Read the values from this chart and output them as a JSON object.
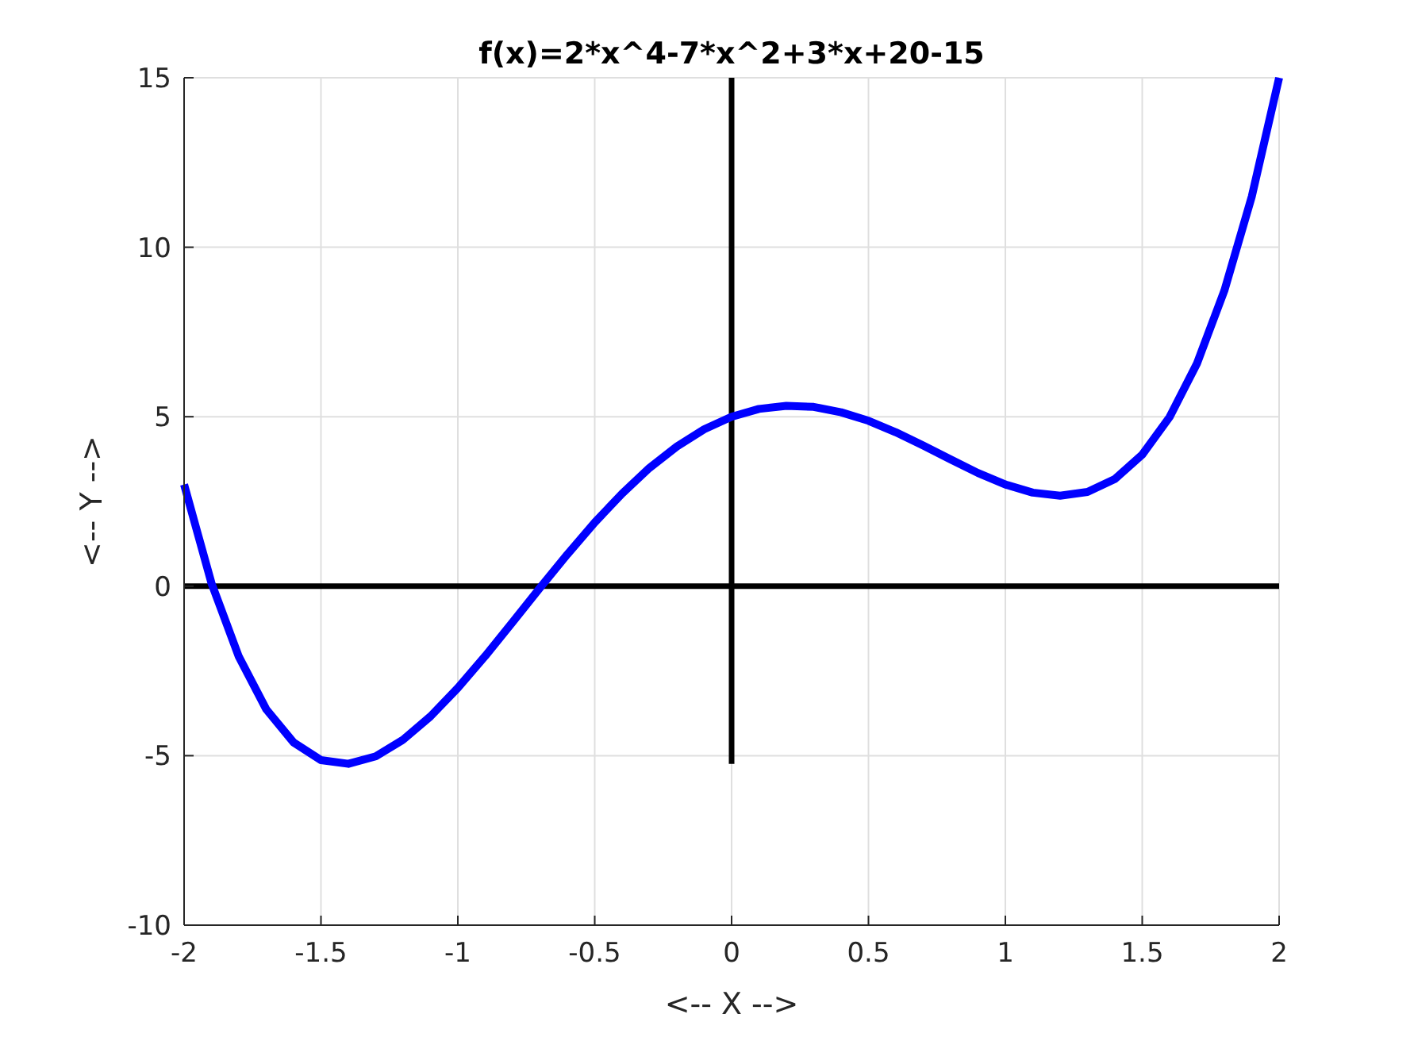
{
  "chart_data": {
    "type": "line",
    "title": "f(x)=2*x^4-7*x^2+3*x+20-15",
    "xlabel": "<-- X -->",
    "ylabel": "<-- Y -->",
    "xlim": [
      -2,
      2
    ],
    "ylim": [
      -10,
      15
    ],
    "xticks": [
      -2,
      -1.5,
      -1,
      -0.5,
      0,
      0.5,
      1,
      1.5,
      2
    ],
    "yticks": [
      -10,
      -5,
      0,
      5,
      10,
      15
    ],
    "grid": true,
    "line_style": "solid",
    "marker": "none",
    "series": [
      {
        "color": "#000000",
        "x": [
          -2,
          2
        ],
        "values": [
          0,
          0
        ]
      },
      {
        "color": "#000000",
        "x": [
          0,
          0
        ],
        "values": [
          -5.24,
          15
        ]
      },
      {
        "color": "#0000ff",
        "x": [
          -2,
          -1.9,
          -1.8,
          -1.7,
          -1.6,
          -1.5,
          -1.4,
          -1.3,
          -1.2,
          -1.1,
          -1,
          -0.9,
          -0.8,
          -0.7,
          -0.6,
          -0.5,
          -0.4,
          -0.3,
          -0.2,
          -0.1,
          0,
          0.1,
          0.2,
          0.3,
          0.4,
          0.5,
          0.6,
          0.7,
          0.8,
          0.9,
          1,
          1.1,
          1.2,
          1.3,
          1.4,
          1.5,
          1.6,
          1.7,
          1.8,
          1.9,
          2
        ],
        "values": [
          3,
          0.09,
          -2.08,
          -3.63,
          -4.61,
          -5.13,
          -5.24,
          -5.02,
          -4.53,
          -3.84,
          -3,
          -2.06,
          -1.06,
          -0.05,
          0.94,
          1.88,
          2.73,
          3.49,
          4.12,
          4.63,
          5,
          5.23,
          5.32,
          5.29,
          5.13,
          4.88,
          4.54,
          4.15,
          3.74,
          3.34,
          3,
          2.76,
          2.67,
          2.78,
          3.16,
          3.88,
          4.99,
          6.57,
          8.72,
          11.49,
          15
        ]
      }
    ]
  }
}
